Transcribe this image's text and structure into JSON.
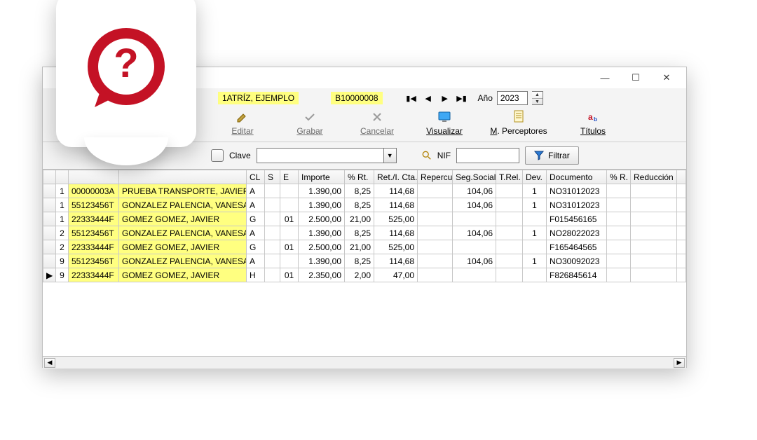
{
  "colors": {
    "highlight": "#ffff80",
    "accent_red": "#c41225",
    "toolbar_disabled": "#8a8a8a",
    "grid_border": "#c8c8c8"
  },
  "titlebar": {
    "minimize": "—",
    "maximize": "☐",
    "close": "✕"
  },
  "header": {
    "company_name": "1ATRÍZ, EJEMPLO",
    "company_nif": "B10000008",
    "year_label": "Año",
    "year_value": "2023"
  },
  "toolbar": {
    "editar": "Editar",
    "grabar": "Grabar",
    "cancelar": "Cancelar",
    "visualizar": "Visualizar",
    "perceptores": "M. Perceptores",
    "titulos": "Títulos"
  },
  "filter": {
    "clave_label": "Clave",
    "clave_value": "",
    "nif_label": "NIF",
    "nif_value": "",
    "filtrar_label": "Filtrar"
  },
  "grid": {
    "columns": [
      "",
      "",
      "",
      "",
      "CL",
      "S",
      "E",
      "Importe",
      "% Rt.",
      "Ret./I. Cta.",
      "Repercut",
      "Seg.Social",
      "T.Rel.",
      "Dev.",
      "Documento",
      "% R.",
      "Reducción"
    ],
    "rows": [
      {
        "marker": "",
        "n": "1",
        "nif": "00000003A",
        "name": "PRUEBA TRANSPORTE, JAVIER",
        "cl": "A",
        "s": "",
        "e": "",
        "importe": "1.390,00",
        "rt": "8,25",
        "ret": "114,68",
        "rep": "",
        "seg": "104,06",
        "trel": "",
        "dev": "1",
        "doc": "NO31012023",
        "pr": "",
        "red": ""
      },
      {
        "marker": "",
        "n": "1",
        "nif": "55123456T",
        "name": "GONZALEZ PALENCIA, VANESA",
        "cl": "A",
        "s": "",
        "e": "",
        "importe": "1.390,00",
        "rt": "8,25",
        "ret": "114,68",
        "rep": "",
        "seg": "104,06",
        "trel": "",
        "dev": "1",
        "doc": "NO31012023",
        "pr": "",
        "red": ""
      },
      {
        "marker": "",
        "n": "1",
        "nif": "22333444F",
        "name": "GOMEZ GOMEZ, JAVIER",
        "cl": "G",
        "s": "",
        "e": "01",
        "importe": "2.500,00",
        "rt": "21,00",
        "ret": "525,00",
        "rep": "",
        "seg": "",
        "trel": "",
        "dev": "",
        "doc": "F015456165",
        "pr": "",
        "red": ""
      },
      {
        "marker": "",
        "n": "2",
        "nif": "55123456T",
        "name": "GONZALEZ PALENCIA, VANESA",
        "cl": "A",
        "s": "",
        "e": "",
        "importe": "1.390,00",
        "rt": "8,25",
        "ret": "114,68",
        "rep": "",
        "seg": "104,06",
        "trel": "",
        "dev": "1",
        "doc": "NO28022023",
        "pr": "",
        "red": ""
      },
      {
        "marker": "",
        "n": "2",
        "nif": "22333444F",
        "name": "GOMEZ GOMEZ, JAVIER",
        "cl": "G",
        "s": "",
        "e": "01",
        "importe": "2.500,00",
        "rt": "21,00",
        "ret": "525,00",
        "rep": "",
        "seg": "",
        "trel": "",
        "dev": "",
        "doc": "F165464565",
        "pr": "",
        "red": ""
      },
      {
        "marker": "",
        "n": "9",
        "nif": "55123456T",
        "name": "GONZALEZ PALENCIA, VANESA",
        "cl": "A",
        "s": "",
        "e": "",
        "importe": "1.390,00",
        "rt": "8,25",
        "ret": "114,68",
        "rep": "",
        "seg": "104,06",
        "trel": "",
        "dev": "1",
        "doc": "NO30092023",
        "pr": "",
        "red": ""
      },
      {
        "marker": "▶",
        "n": "9",
        "nif": "22333444F",
        "name": "GOMEZ GOMEZ, JAVIER",
        "cl": "H",
        "s": "",
        "e": "01",
        "importe": "2.350,00",
        "rt": "2,00",
        "ret": "47,00",
        "rep": "",
        "seg": "",
        "trel": "",
        "dev": "",
        "doc": "F826845614",
        "pr": "",
        "red": ""
      }
    ]
  }
}
